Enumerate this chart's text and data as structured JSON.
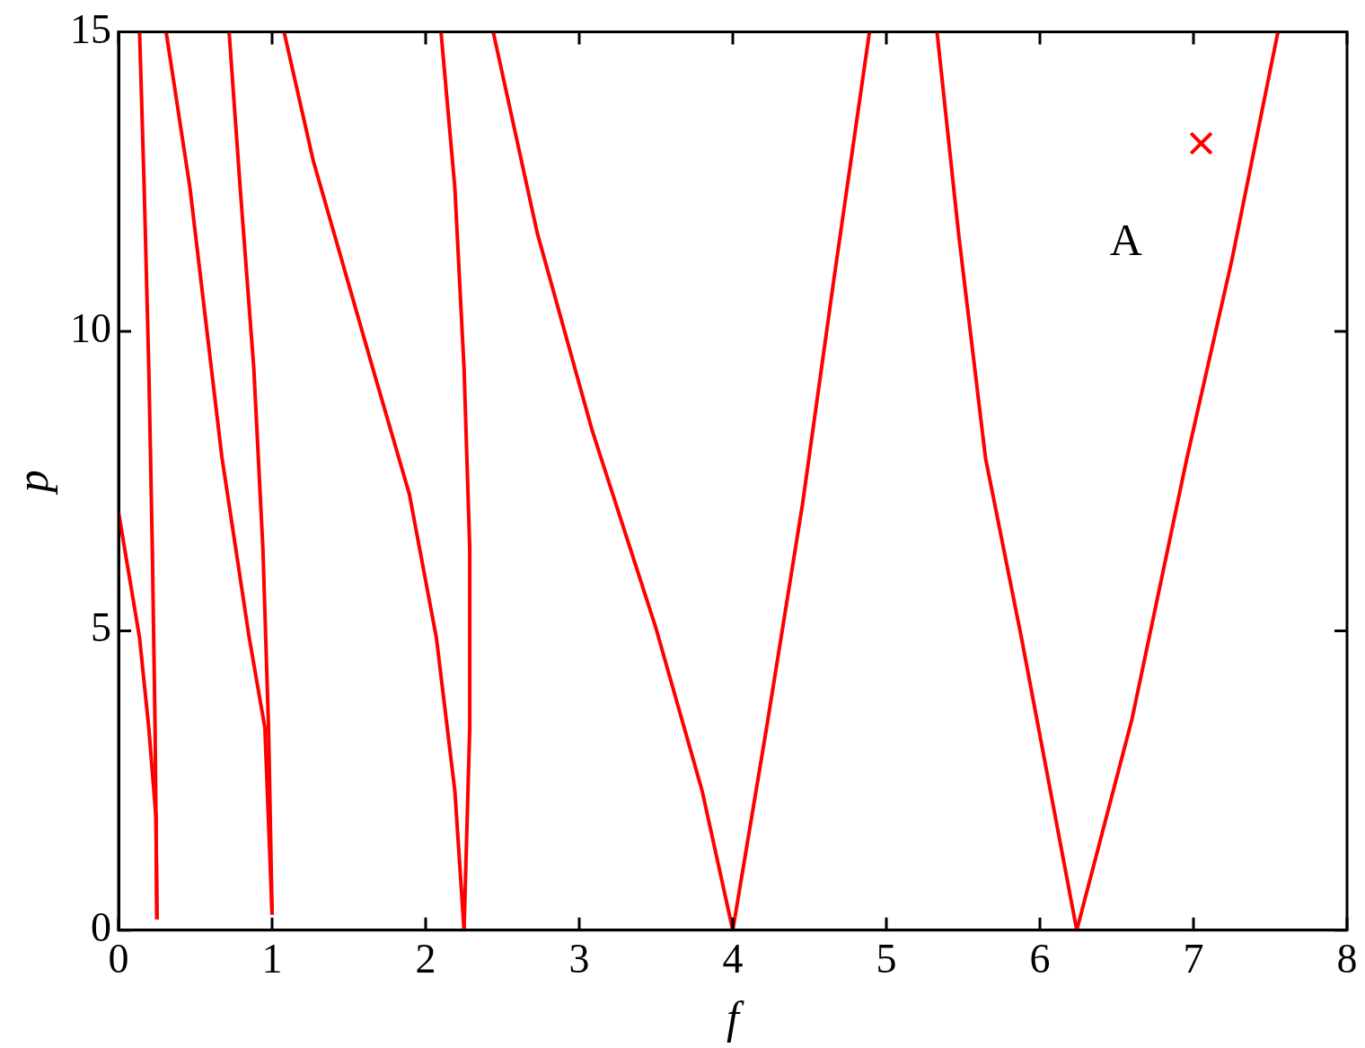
{
  "chart_data": {
    "type": "line",
    "xlabel": "f",
    "ylabel": "p",
    "xlim": [
      0,
      8
    ],
    "ylim": [
      0,
      15
    ],
    "xticks": [
      0,
      1,
      2,
      3,
      4,
      5,
      6,
      7,
      8
    ],
    "yticks": [
      0,
      5,
      10,
      15
    ],
    "grid": false,
    "legend": false,
    "line_style": "solid",
    "annotations": [
      "A"
    ],
    "series": [
      {
        "color": "#ff0000",
        "marker": "none",
        "x": [
          0,
          0.137,
          0.197,
          0.244,
          0.25
        ],
        "values": [
          6.98,
          4.88,
          3.38,
          1.88,
          0.18
        ]
      },
      {
        "color": "#ff0000",
        "marker": "none",
        "x": [
          0.137,
          0.167,
          0.197,
          0.22,
          0.238,
          0.25
        ],
        "values": [
          15,
          12.4,
          9.38,
          6.38,
          3.38,
          0.18
        ]
      },
      {
        "color": "#ff0000",
        "marker": "none",
        "x": [
          0.31,
          0.465,
          0.673,
          0.85,
          0.953,
          1.0
        ],
        "values": [
          15,
          12.4,
          7.9,
          4.9,
          3.38,
          0.26
        ]
      },
      {
        "color": "#ff0000",
        "marker": "none",
        "x": [
          0.72,
          0.792,
          0.881,
          0.94,
          0.977,
          1.0
        ],
        "values": [
          15,
          12.4,
          9.38,
          6.38,
          3.38,
          0.26
        ]
      },
      {
        "color": "#ff0000",
        "marker": "none",
        "x": [
          1.078,
          1.268,
          1.656,
          1.894,
          2.07,
          2.19,
          2.25
        ],
        "values": [
          15,
          12.85,
          9.38,
          7.28,
          4.88,
          2.33,
          0
        ]
      },
      {
        "color": "#ff0000",
        "marker": "none",
        "x": [
          2.1,
          2.19,
          2.25,
          2.287,
          2.287,
          2.25
        ],
        "values": [
          15,
          12.4,
          9.38,
          6.38,
          3.38,
          0
        ]
      },
      {
        "color": "#ff0000",
        "marker": "none",
        "x": [
          2.44,
          2.727,
          3.085,
          3.5,
          3.8,
          4.0
        ],
        "values": [
          15,
          11.64,
          8.34,
          5.04,
          2.33,
          0
        ]
      },
      {
        "color": "#ff0000",
        "marker": "none",
        "x": [
          4.0,
          4.22,
          4.455,
          4.66,
          4.89
        ],
        "values": [
          0,
          3.38,
          7.13,
          10.9,
          15
        ]
      },
      {
        "color": "#ff0000",
        "marker": "none",
        "x": [
          5.33,
          5.47,
          5.646,
          5.88,
          6.24
        ],
        "values": [
          15,
          11.64,
          7.88,
          4.88,
          0
        ]
      },
      {
        "color": "#ff0000",
        "marker": "none",
        "x": [
          6.24,
          6.6,
          6.957,
          7.25,
          7.55
        ],
        "values": [
          0,
          3.53,
          7.88,
          11.19,
          15
        ]
      },
      {
        "type": "scatter",
        "color": "#ff0000",
        "marker": "cross",
        "x": [
          7.05
        ],
        "values": [
          13.14
        ]
      }
    ]
  }
}
